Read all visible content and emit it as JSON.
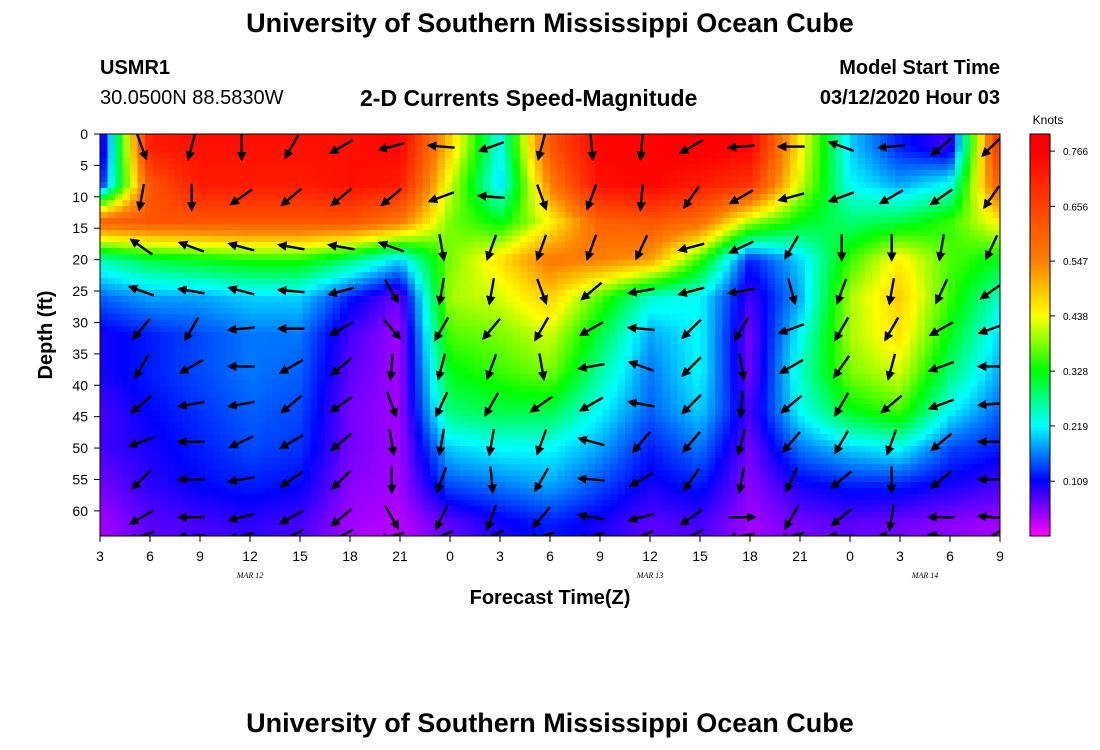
{
  "page": {
    "title": "University of Southern Mississippi Ocean Cube",
    "footer_title": "University of Southern Mississippi Ocean Cube",
    "station_id": "USMR1",
    "station_coords": "30.0500N 88.5830W",
    "subtitle": "2-D Currents Speed-Magnitude",
    "model_start_label": "Model Start Time",
    "model_start_value": "03/12/2020 Hour 03"
  },
  "chart_data": {
    "type": "heatmap",
    "title": "2-D Currents Speed-Magnitude",
    "xlabel": "Forecast Time(Z)",
    "ylabel": "Depth (ft)",
    "x_tick_labels": [
      "3",
      "6",
      "9",
      "12",
      "15",
      "18",
      "21",
      "0",
      "3",
      "6",
      "9",
      "12",
      "15",
      "18",
      "21",
      "0",
      "3",
      "6",
      "9"
    ],
    "x_date_labels": [
      {
        "label": "MAR 12",
        "at_tick": 3
      },
      {
        "label": "MAR 13",
        "at_tick": 11
      },
      {
        "label": "MAR 14",
        "at_tick": 16.5
      }
    ],
    "y_ticks": [
      0,
      5,
      10,
      15,
      20,
      25,
      30,
      35,
      40,
      45,
      50,
      55,
      60
    ],
    "ylim": [
      0,
      64
    ],
    "y_inverted": true,
    "colorbar": {
      "unit": "Knots",
      "tick_labels": [
        "0.766",
        "0.656",
        "0.547",
        "0.438",
        "0.328",
        "0.219",
        "0.109"
      ],
      "tick_values": [
        0.766,
        0.656,
        0.547,
        0.438,
        0.328,
        0.219,
        0.109
      ],
      "range": [
        0,
        0.8
      ],
      "colors": [
        "#ff00ff",
        "#0000ff",
        "#00ffff",
        "#00ff00",
        "#ffff00",
        "#ff8000",
        "#ff0000"
      ]
    },
    "speed_grid_hours": [
      0,
      3,
      6,
      9,
      12,
      15,
      18,
      21,
      24,
      27,
      30,
      33,
      36,
      39,
      42,
      45,
      48,
      51,
      54
    ],
    "speed_grid_depths": [
      2,
      8,
      14,
      20,
      26,
      32,
      38,
      44,
      50,
      56,
      62
    ],
    "speed_grid": [
      [
        0.05,
        0.72,
        0.74,
        0.74,
        0.74,
        0.74,
        0.76,
        0.48,
        0.22,
        0.62,
        0.76,
        0.76,
        0.78,
        0.76,
        0.45,
        0.2,
        0.12,
        0.08,
        0.7
      ],
      [
        0.1,
        0.62,
        0.72,
        0.72,
        0.72,
        0.74,
        0.72,
        0.42,
        0.2,
        0.55,
        0.74,
        0.76,
        0.72,
        0.68,
        0.42,
        0.22,
        0.18,
        0.22,
        0.62
      ],
      [
        0.6,
        0.62,
        0.62,
        0.62,
        0.62,
        0.62,
        0.56,
        0.38,
        0.32,
        0.44,
        0.6,
        0.62,
        0.58,
        0.4,
        0.32,
        0.28,
        0.3,
        0.35,
        0.45
      ],
      [
        0.25,
        0.3,
        0.32,
        0.34,
        0.34,
        0.28,
        0.2,
        0.38,
        0.46,
        0.56,
        0.55,
        0.52,
        0.35,
        0.12,
        0.2,
        0.35,
        0.45,
        0.36,
        0.32
      ],
      [
        0.15,
        0.18,
        0.18,
        0.2,
        0.2,
        0.12,
        0.06,
        0.4,
        0.42,
        0.48,
        0.36,
        0.24,
        0.22,
        0.08,
        0.18,
        0.4,
        0.48,
        0.35,
        0.24
      ],
      [
        0.1,
        0.12,
        0.14,
        0.16,
        0.16,
        0.08,
        0.04,
        0.36,
        0.38,
        0.42,
        0.3,
        0.18,
        0.22,
        0.06,
        0.22,
        0.4,
        0.46,
        0.32,
        0.2
      ],
      [
        0.1,
        0.12,
        0.14,
        0.16,
        0.15,
        0.07,
        0.04,
        0.32,
        0.35,
        0.38,
        0.26,
        0.16,
        0.22,
        0.06,
        0.24,
        0.38,
        0.42,
        0.28,
        0.18
      ],
      [
        0.08,
        0.11,
        0.13,
        0.15,
        0.14,
        0.06,
        0.04,
        0.28,
        0.3,
        0.3,
        0.22,
        0.15,
        0.2,
        0.08,
        0.22,
        0.32,
        0.36,
        0.22,
        0.15
      ],
      [
        0.08,
        0.1,
        0.12,
        0.14,
        0.13,
        0.06,
        0.04,
        0.2,
        0.22,
        0.22,
        0.18,
        0.12,
        0.16,
        0.06,
        0.16,
        0.2,
        0.22,
        0.14,
        0.12
      ],
      [
        0.06,
        0.09,
        0.11,
        0.12,
        0.11,
        0.05,
        0.04,
        0.14,
        0.16,
        0.18,
        0.14,
        0.1,
        0.12,
        0.05,
        0.1,
        0.12,
        0.12,
        0.1,
        0.08
      ],
      [
        0.04,
        0.07,
        0.08,
        0.09,
        0.08,
        0.04,
        0.03,
        0.07,
        0.1,
        0.12,
        0.1,
        0.07,
        0.08,
        0.04,
        0.06,
        0.07,
        0.06,
        0.05,
        0.04
      ]
    ],
    "vector_hours": [
      2.5,
      5.5,
      8.5,
      11.5,
      14.5,
      17.5,
      20.5,
      23.5,
      26.5,
      29.5,
      32.5,
      35.5,
      38.5,
      41.5,
      44.5,
      47.5,
      50.5,
      53.5
    ],
    "vector_depths": [
      2,
      10,
      18,
      25,
      31,
      37,
      43,
      49,
      55,
      61,
      64
    ],
    "vector_angles_deg": [
      [
        70,
        105,
        90,
        120,
        150,
        165,
        185,
        160,
        105,
        85,
        95,
        150,
        175,
        180,
        200,
        175,
        140,
        135
      ],
      [
        100,
        90,
        145,
        140,
        140,
        140,
        160,
        185,
        70,
        110,
        95,
        125,
        150,
        165,
        160,
        150,
        145,
        125
      ],
      [
        215,
        200,
        195,
        190,
        190,
        200,
        80,
        110,
        110,
        110,
        115,
        165,
        155,
        120,
        90,
        90,
        100,
        115
      ],
      [
        200,
        190,
        195,
        185,
        165,
        60,
        100,
        100,
        70,
        140,
        170,
        165,
        170,
        75,
        110,
        100,
        115,
        145
      ],
      [
        130,
        120,
        175,
        180,
        150,
        50,
        120,
        130,
        120,
        150,
        185,
        135,
        120,
        160,
        120,
        120,
        150,
        160
      ],
      [
        120,
        150,
        180,
        150,
        140,
        95,
        105,
        110,
        80,
        170,
        200,
        135,
        80,
        150,
        125,
        105,
        160,
        180
      ],
      [
        140,
        170,
        170,
        140,
        145,
        70,
        115,
        120,
        145,
        150,
        190,
        135,
        95,
        140,
        120,
        140,
        160,
        175
      ],
      [
        160,
        180,
        155,
        150,
        140,
        80,
        100,
        100,
        110,
        195,
        130,
        130,
        105,
        130,
        120,
        110,
        140,
        180
      ],
      [
        135,
        180,
        170,
        145,
        135,
        90,
        110,
        85,
        120,
        185,
        150,
        125,
        100,
        115,
        140,
        90,
        140,
        180
      ],
      [
        150,
        180,
        165,
        150,
        140,
        60,
        115,
        110,
        130,
        190,
        165,
        145,
        0,
        120,
        140,
        100,
        180,
        185
      ],
      [
        160,
        175,
        165,
        150,
        150,
        165,
        155,
        155,
        165,
        165,
        155,
        150,
        170,
        165,
        180,
        180,
        185,
        150
      ]
    ]
  }
}
